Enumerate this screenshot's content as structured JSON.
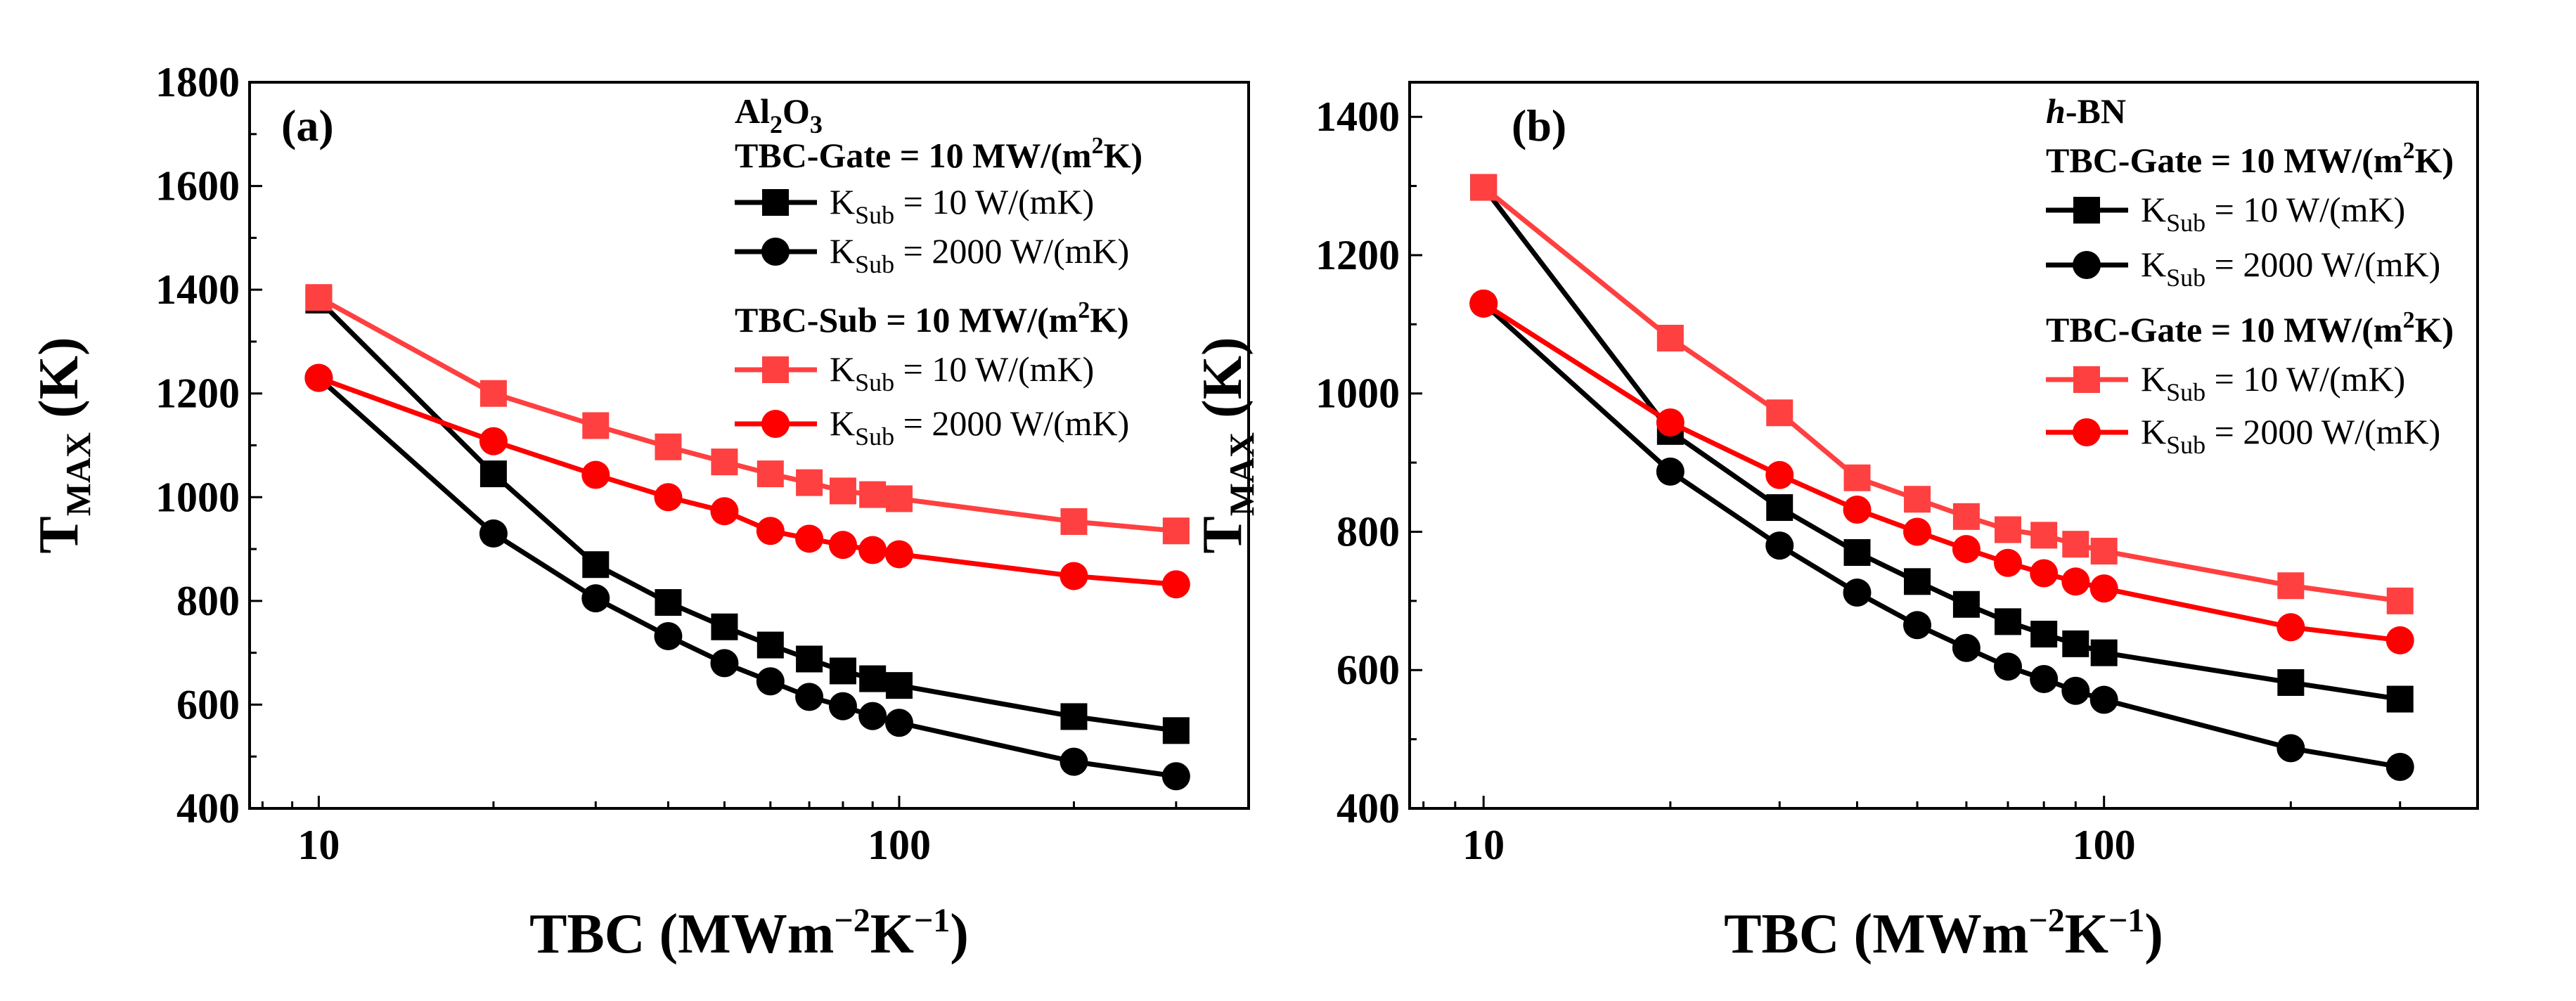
{
  "chart_data": [
    {
      "type": "line",
      "panel_label": "(a)",
      "material": {
        "main": "Al",
        "sub1": "2",
        "mid": "O",
        "sub2": "3"
      },
      "xlabel": {
        "main": "TBC (MWm",
        "sup1": "−2",
        "mid": "K",
        "sup2": "−1",
        "end": ")"
      },
      "ylabel": {
        "main": "T",
        "sub": "MAX",
        "end": " (K)"
      },
      "xscale": "log",
      "xlim": [
        7.6,
        400
      ],
      "ylim": [
        400,
        1800
      ],
      "xticks": [
        10,
        100
      ],
      "xtick_labels": [
        "10",
        "100"
      ],
      "yticks": [
        400,
        600,
        800,
        1000,
        1200,
        1400,
        1600,
        1800
      ],
      "ytick_labels": [
        "400",
        "600",
        "800",
        "1000",
        "1200",
        "1400",
        "1600",
        "1800"
      ],
      "legend_groups": [
        {
          "title": "TBC-Gate = 10 MW/(m",
          "sup": "2",
          "title_end": "K)"
        },
        {
          "title": "TBC-Sub = 10 MW/(m",
          "sup": "2",
          "title_end": "K)"
        }
      ],
      "x": [
        10,
        20,
        30,
        40,
        50,
        60,
        70,
        80,
        90,
        100,
        200,
        300
      ],
      "series": [
        {
          "name": "K",
          "sub": "Sub",
          "rest": " = 10 W/(mK)",
          "group": 0,
          "marker": "square",
          "color": "#000000",
          "values": [
            1380,
            1045,
            870,
            797,
            750,
            715,
            688,
            665,
            650,
            637,
            577,
            550
          ]
        },
        {
          "name": "K",
          "sub": "Sub",
          "rest": " = 2000 W/(mK)",
          "group": 0,
          "marker": "circle",
          "color": "#000000",
          "values": [
            1230,
            930,
            805,
            732,
            680,
            645,
            615,
            597,
            578,
            565,
            490,
            462
          ]
        },
        {
          "name": "K",
          "sub": "Sub",
          "rest": " = 10 W/(mK)",
          "group": 1,
          "marker": "square",
          "color": "#ff4040",
          "values": [
            1385,
            1200,
            1138,
            1097,
            1068,
            1045,
            1028,
            1012,
            1005,
            997,
            953,
            935
          ]
        },
        {
          "name": "K",
          "sub": "Sub",
          "rest": " = 2000 W/(mK)",
          "group": 1,
          "marker": "circle",
          "color": "#ff0000",
          "values": [
            1230,
            1108,
            1043,
            1000,
            973,
            935,
            920,
            908,
            898,
            890,
            848,
            832
          ]
        }
      ]
    },
    {
      "type": "line",
      "panel_label": "(b)",
      "material": {
        "italic": "h",
        "rest": "-BN"
      },
      "xlabel": {
        "main": "TBC (MWm",
        "sup1": "−2",
        "mid": "K",
        "sup2": "−1",
        "end": ")"
      },
      "ylabel": {
        "main": "T",
        "sub": "MAX",
        "end": " (K)"
      },
      "xscale": "log",
      "xlim": [
        7.6,
        400
      ],
      "ylim": [
        400,
        1450
      ],
      "xticks": [
        10,
        100
      ],
      "xtick_labels": [
        "10",
        "100"
      ],
      "yticks": [
        400,
        600,
        800,
        1000,
        1200,
        1400
      ],
      "ytick_labels": [
        "400",
        "600",
        "800",
        "1000",
        "1200",
        "1400"
      ],
      "legend_groups": [
        {
          "title": "TBC-Gate = 10 MW/(m",
          "sup": "2",
          "title_end": "K)"
        },
        {
          "title": "TBC-Gate = 10 MW/(m",
          "sup": "2",
          "title_end": "K)"
        }
      ],
      "x": [
        10,
        20,
        30,
        40,
        50,
        60,
        70,
        80,
        90,
        100,
        200,
        300
      ],
      "series": [
        {
          "name": "K",
          "sub": "Sub",
          "rest": " = 10 W/(mK)",
          "group": 0,
          "marker": "square",
          "color": "#000000",
          "values": [
            1298,
            945,
            835,
            770,
            728,
            695,
            670,
            652,
            638,
            625,
            582,
            558
          ]
        },
        {
          "name": "K",
          "sub": "Sub",
          "rest": " = 2000 W/(mK)",
          "group": 0,
          "marker": "circle",
          "color": "#000000",
          "values": [
            1130,
            887,
            780,
            712,
            665,
            632,
            605,
            587,
            570,
            557,
            487,
            460
          ]
        },
        {
          "name": "K",
          "sub": "Sub",
          "rest": " = 10 W/(mK)",
          "group": 1,
          "marker": "square",
          "color": "#ff4040",
          "values": [
            1298,
            1080,
            972,
            878,
            847,
            822,
            803,
            795,
            782,
            772,
            722,
            700
          ]
        },
        {
          "name": "K",
          "sub": "Sub",
          "rest": " = 2000 W/(mK)",
          "group": 1,
          "marker": "circle",
          "color": "#ff0000",
          "values": [
            1130,
            958,
            882,
            832,
            800,
            775,
            755,
            740,
            728,
            718,
            662,
            643
          ]
        }
      ]
    }
  ]
}
